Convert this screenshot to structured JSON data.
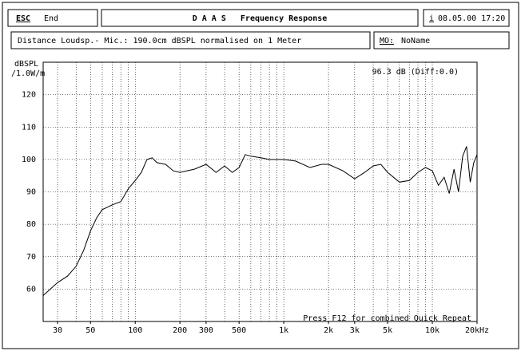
{
  "header": {
    "esc_key": "ESC",
    "esc_label": "End",
    "title": "D A A S   Frequency Response",
    "info_key": "i",
    "datetime": "08.05.00 17:20"
  },
  "info": {
    "distance": "Distance Loudsp.- Mic.: 190.0cm dBSPL normalised on 1 Meter",
    "mo_key": "MO:",
    "mo_value": "NoName"
  },
  "chart_data": {
    "type": "line",
    "ylabel": [
      "dBSPL",
      "/1.0W/m"
    ],
    "annotation": "96.3 dB (Diff:0.0)",
    "footer": "Press F12 for combined Quick Repeat",
    "color": "#000000",
    "xlog": true,
    "grid": true,
    "xlim": [
      24,
      20000
    ],
    "ylim": [
      50,
      130
    ],
    "xticks": [
      30,
      50,
      100,
      200,
      300,
      500,
      {
        "value": 1000,
        "label": "1k"
      },
      {
        "value": 2000,
        "label": "2k"
      },
      {
        "value": 3000,
        "label": "3k"
      },
      {
        "value": 5000,
        "label": "5k"
      },
      {
        "value": 10000,
        "label": "10k"
      },
      {
        "value": 20000,
        "label": "20kHz"
      }
    ],
    "xgrid": [
      30,
      40,
      50,
      60,
      70,
      80,
      90,
      100,
      200,
      300,
      400,
      500,
      600,
      700,
      800,
      900,
      1000,
      2000,
      3000,
      4000,
      5000,
      6000,
      7000,
      8000,
      9000,
      10000,
      20000
    ],
    "yticks": [
      60,
      70,
      80,
      90,
      100,
      110,
      120
    ],
    "x": [
      24,
      30,
      35,
      40,
      45,
      50,
      55,
      60,
      70,
      80,
      90,
      100,
      110,
      120,
      130,
      140,
      160,
      180,
      200,
      250,
      300,
      350,
      400,
      450,
      500,
      550,
      600,
      700,
      800,
      1000,
      1200,
      1500,
      1800,
      2000,
      2500,
      3000,
      3500,
      4000,
      4500,
      5000,
      6000,
      7000,
      8000,
      9000,
      10000,
      11000,
      12000,
      13000,
      14000,
      15000,
      16000,
      17000,
      18000,
      19000,
      20000
    ],
    "values": [
      58,
      62,
      64,
      67,
      72,
      78,
      82,
      84.5,
      86,
      87,
      91,
      93.5,
      96,
      100,
      100.5,
      99,
      98.5,
      96.5,
      96,
      97,
      98.5,
      96,
      98,
      96,
      97.5,
      101.5,
      101,
      100.5,
      100,
      100,
      99.5,
      97.5,
      98.5,
      98.5,
      96.5,
      94,
      96,
      98,
      98.5,
      96,
      93,
      93.5,
      96,
      97.5,
      96.5,
      92,
      94.5,
      89.5,
      97,
      90,
      101,
      104,
      93,
      99,
      101.5
    ]
  }
}
